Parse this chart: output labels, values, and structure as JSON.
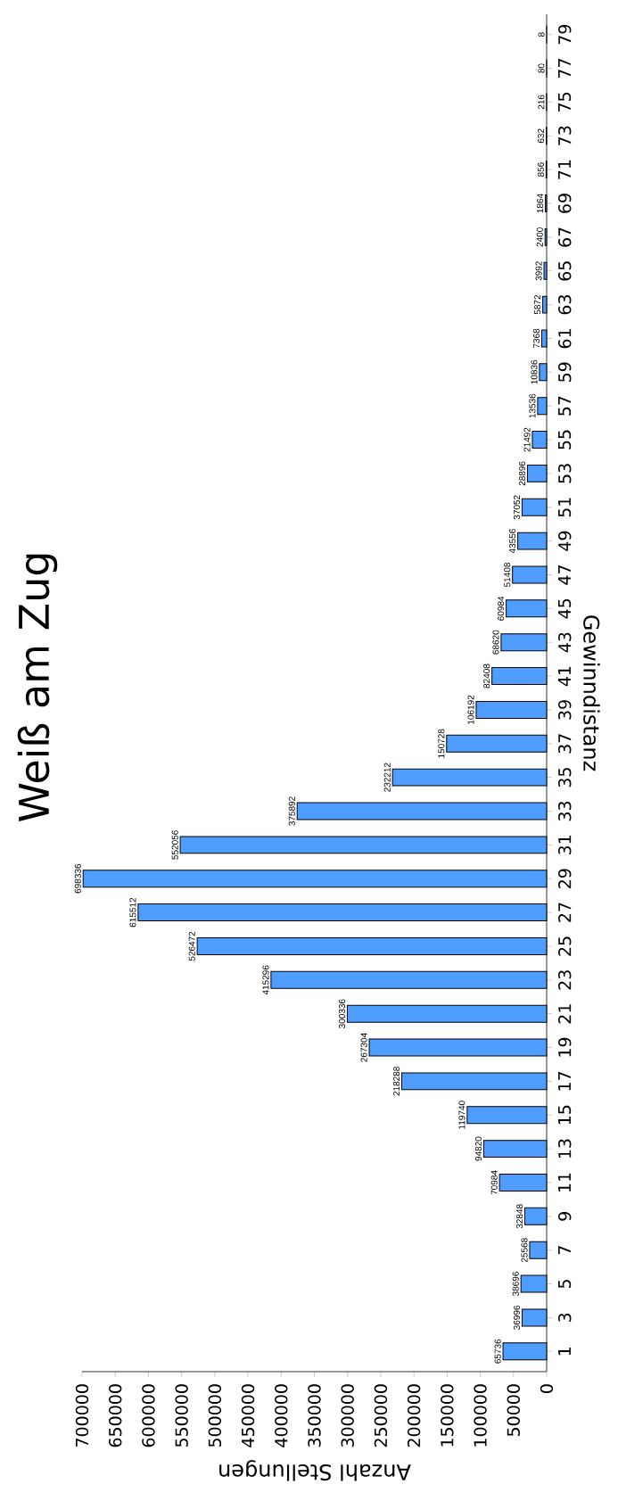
{
  "chart_data": {
    "type": "bar",
    "orientation": "horizontal",
    "title": "Weiß am Zug",
    "xlabel": "Anzahl Stellungen",
    "ylabel": "Gewinndistanz",
    "categories": [
      "79",
      "77",
      "75",
      "73",
      "71",
      "69",
      "67",
      "65",
      "63",
      "61",
      "59",
      "57",
      "55",
      "53",
      "51",
      "49",
      "47",
      "45",
      "43",
      "41",
      "39",
      "37",
      "35",
      "33",
      "31",
      "29",
      "27",
      "25",
      "23",
      "21",
      "19",
      "17",
      "15",
      "13",
      "11",
      "9",
      "7",
      "5",
      "3",
      "1"
    ],
    "values": [
      8,
      80,
      216,
      632,
      856,
      1864,
      2400,
      3992,
      5872,
      7368,
      10836,
      13536,
      21492,
      28896,
      37052,
      43556,
      51408,
      60984,
      68620,
      82408,
      106192,
      150728,
      232212,
      375892,
      552056,
      698336,
      615512,
      526472,
      415296,
      300336,
      267304,
      218288,
      119740,
      94820,
      70984,
      32848,
      25568,
      38696,
      36996,
      65736
    ],
    "color": "#4f9dff",
    "xlim": [
      700000,
      0
    ],
    "xticks": [
      0,
      50000,
      100000,
      150000,
      200000,
      250000,
      300000,
      350000,
      400000,
      450000,
      500000,
      550000,
      600000,
      650000,
      700000
    ],
    "data_labels": true
  }
}
